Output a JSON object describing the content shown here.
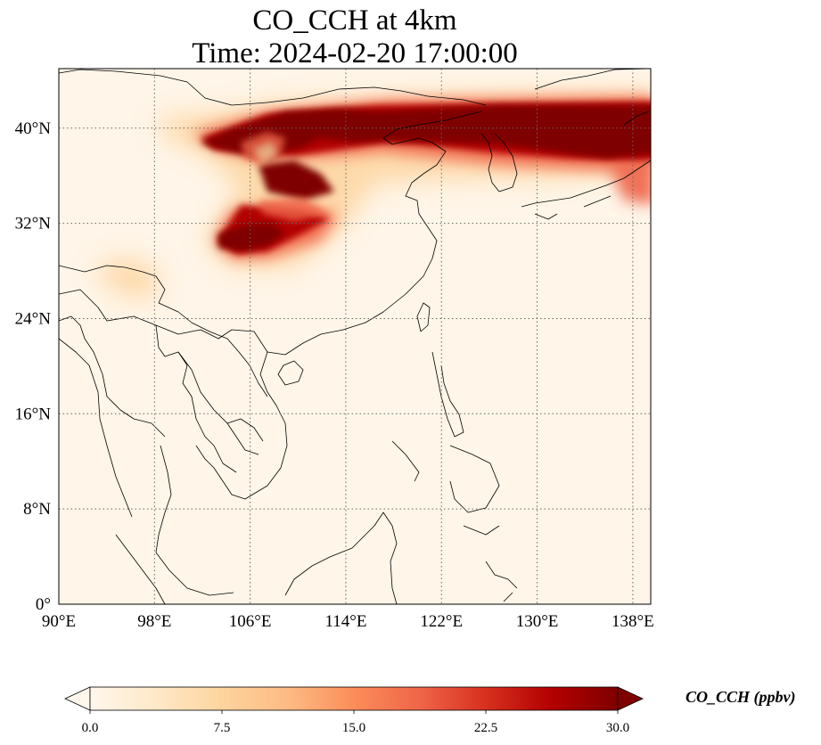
{
  "title": {
    "line1": "CO_CCH at 4km",
    "line2": "Time: 2024-02-20 17:00:00"
  },
  "map": {
    "lon_range": [
      90,
      139.5
    ],
    "lat_range": [
      0,
      45
    ],
    "lon_ticks": [
      {
        "value": 90,
        "label": "90°E"
      },
      {
        "value": 98,
        "label": "98°E"
      },
      {
        "value": 106,
        "label": "106°E"
      },
      {
        "value": 114,
        "label": "114°E"
      },
      {
        "value": 122,
        "label": "122°E"
      },
      {
        "value": 130,
        "label": "130°E"
      },
      {
        "value": 138,
        "label": "138°E"
      }
    ],
    "lat_ticks": [
      {
        "value": 0,
        "label": "0°"
      },
      {
        "value": 8,
        "label": "8°N"
      },
      {
        "value": 16,
        "label": "16°N"
      },
      {
        "value": 24,
        "label": "24°N"
      },
      {
        "value": 32,
        "label": "32°N"
      },
      {
        "value": 40,
        "label": "40°N"
      }
    ],
    "gridlines": "dotted",
    "background_color": "#fff5e8"
  },
  "colorbar": {
    "label": "CO_CCH (ppbv)",
    "min": 0,
    "max": 30,
    "extend": "both",
    "colormap": "OrRd",
    "ticks": [
      {
        "value": 0,
        "label": "0.0"
      },
      {
        "value": 7.5,
        "label": "7.5"
      },
      {
        "value": 15,
        "label": "15.0"
      },
      {
        "value": 22.5,
        "label": "22.5"
      },
      {
        "value": 30,
        "label": "30.0"
      }
    ],
    "colors": [
      "#fff7ec",
      "#fee8c8",
      "#fdd49e",
      "#fdbb84",
      "#fc8d59",
      "#ef6548",
      "#d7301f",
      "#b30000",
      "#7f0000"
    ]
  },
  "plume_colors": {
    "high": "#7f0000",
    "mid": "#b30000",
    "low": "#ef6548",
    "faint": "#fdd49e"
  }
}
